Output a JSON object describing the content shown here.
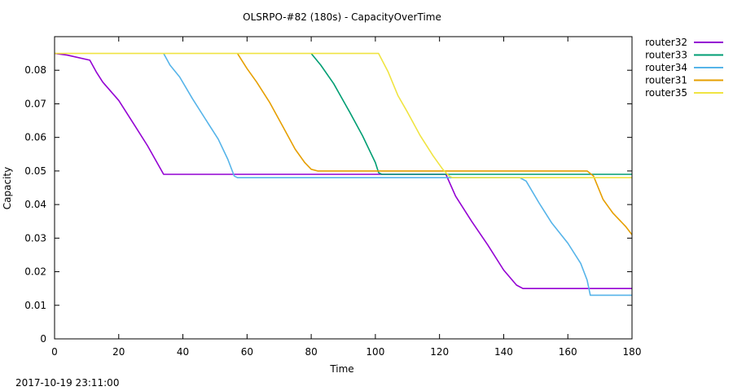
{
  "chart_data": {
    "type": "line",
    "title": "OLSRPO-#82 (180s) - CapacityOverTime",
    "xlabel": "Time",
    "ylabel": "Capacity",
    "xlim": [
      0,
      180
    ],
    "ylim": [
      0,
      0.09
    ],
    "xticks": [
      0,
      20,
      40,
      60,
      80,
      100,
      120,
      140,
      160,
      180
    ],
    "yticks": [
      0,
      0.01,
      0.02,
      0.03,
      0.04,
      0.05,
      0.06,
      0.07,
      0.08
    ],
    "grid": false,
    "legend_position": "outside-right",
    "series": [
      {
        "name": "router32",
        "color": "#9400d3",
        "points": [
          [
            0,
            0.085
          ],
          [
            4,
            0.0845
          ],
          [
            11,
            0.083
          ],
          [
            13,
            0.0795
          ],
          [
            15,
            0.0765
          ],
          [
            20,
            0.071
          ],
          [
            25,
            0.0635
          ],
          [
            29,
            0.0575
          ],
          [
            34,
            0.049
          ],
          [
            60,
            0.049
          ],
          [
            100,
            0.049
          ],
          [
            122,
            0.049
          ],
          [
            125,
            0.0425
          ],
          [
            130,
            0.035
          ],
          [
            135,
            0.028
          ],
          [
            140,
            0.0205
          ],
          [
            144,
            0.016
          ],
          [
            146,
            0.015
          ],
          [
            180,
            0.015
          ]
        ]
      },
      {
        "name": "router33",
        "color": "#009e73",
        "points": [
          [
            80,
            0.085
          ],
          [
            83,
            0.0815
          ],
          [
            87,
            0.076
          ],
          [
            92,
            0.0675
          ],
          [
            96,
            0.0605
          ],
          [
            100,
            0.0525
          ],
          [
            101,
            0.0495
          ],
          [
            102,
            0.049
          ],
          [
            180,
            0.049
          ]
        ]
      },
      {
        "name": "router34",
        "color": "#56b4e9",
        "points": [
          [
            34,
            0.085
          ],
          [
            36,
            0.0815
          ],
          [
            39,
            0.078
          ],
          [
            43,
            0.0715
          ],
          [
            47,
            0.0655
          ],
          [
            51,
            0.0595
          ],
          [
            54,
            0.0535
          ],
          [
            56,
            0.0485
          ],
          [
            57,
            0.048
          ],
          [
            100,
            0.048
          ],
          [
            145,
            0.048
          ],
          [
            147,
            0.047
          ],
          [
            151,
            0.0405
          ],
          [
            155,
            0.0345
          ],
          [
            160,
            0.0285
          ],
          [
            164,
            0.0225
          ],
          [
            166,
            0.0175
          ],
          [
            167,
            0.013
          ],
          [
            180,
            0.013
          ]
        ]
      },
      {
        "name": "router31",
        "color": "#e69f00",
        "points": [
          [
            57,
            0.085
          ],
          [
            60,
            0.0805
          ],
          [
            63,
            0.0765
          ],
          [
            67,
            0.0705
          ],
          [
            71,
            0.0635
          ],
          [
            75,
            0.0565
          ],
          [
            78,
            0.0525
          ],
          [
            80,
            0.0505
          ],
          [
            82,
            0.05
          ],
          [
            120,
            0.05
          ],
          [
            166,
            0.05
          ],
          [
            168,
            0.0485
          ],
          [
            171,
            0.0415
          ],
          [
            174,
            0.0375
          ],
          [
            178,
            0.0335
          ],
          [
            180,
            0.031
          ]
        ]
      },
      {
        "name": "router35",
        "color": "#f0e442",
        "points": [
          [
            0,
            0.085
          ],
          [
            60,
            0.085
          ],
          [
            101,
            0.085
          ],
          [
            104,
            0.0795
          ],
          [
            107,
            0.0725
          ],
          [
            110,
            0.0675
          ],
          [
            114,
            0.0605
          ],
          [
            118,
            0.0545
          ],
          [
            121,
            0.0505
          ],
          [
            123,
            0.0485
          ],
          [
            124,
            0.048
          ],
          [
            180,
            0.048
          ]
        ]
      }
    ]
  },
  "footer": {
    "timestamp": "2017-10-19 23:11:00"
  }
}
